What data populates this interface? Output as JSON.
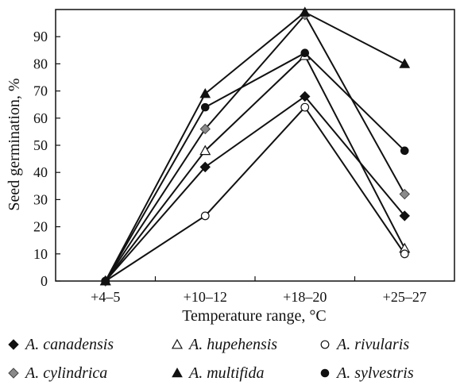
{
  "chart_data": {
    "type": "line",
    "title": "",
    "xlabel": "Temperature range, °C",
    "ylabel": "Seed germination, %",
    "categories": [
      "+4–5",
      "+10–12",
      "+18–20",
      "+25–27"
    ],
    "ylim": [
      0,
      100
    ],
    "yticks": [
      0,
      10,
      20,
      30,
      40,
      50,
      60,
      70,
      80,
      90
    ],
    "grid": false,
    "legend_position": "bottom",
    "series": [
      {
        "name": "A. canadensis",
        "marker": "diamond-filled",
        "color": "#111111",
        "values": [
          0,
          42,
          68,
          24
        ]
      },
      {
        "name": "A. hupehensis",
        "marker": "triangle-open",
        "color": "#111111",
        "values": [
          0,
          48,
          83,
          12
        ]
      },
      {
        "name": "A. rivularis",
        "marker": "circle-open",
        "color": "#111111",
        "values": [
          0,
          24,
          64,
          10
        ]
      },
      {
        "name": "A. cylindrica",
        "marker": "diamond-gray",
        "color": "#8a8a8a",
        "values": [
          0,
          56,
          98,
          32
        ]
      },
      {
        "name": "A. multifida",
        "marker": "triangle-filled",
        "color": "#111111",
        "values": [
          0,
          69,
          99,
          80
        ]
      },
      {
        "name": "A. sylvestris",
        "marker": "circle-filled",
        "color": "#111111",
        "values": [
          0,
          64,
          84,
          48
        ]
      }
    ]
  }
}
